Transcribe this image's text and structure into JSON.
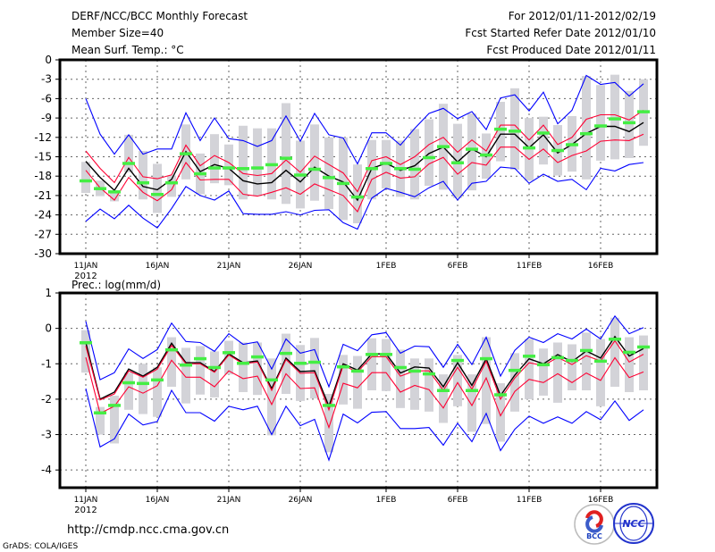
{
  "header": {
    "title": "DERF/NCC/BCC Monthly Forecast",
    "member_size": "Member Size=40",
    "variable": "Mean Surf. Temp.: °C",
    "period": "For 2012/01/11-2012/02/19",
    "started": "Fcst Started Refer Date 2012/01/10",
    "produced": "Fcst Produced Date 2012/01/11"
  },
  "footer": {
    "url": "http://cmdp.ncc.cma.gov.cn",
    "credit": "GrADS: COLA/IGES",
    "logo_bcc": "BCC",
    "logo_ncc": "NCC"
  },
  "colors": {
    "mean": "#000000",
    "spread": "#ff0033",
    "envelope": "#0000ff",
    "observed": "#44ee44",
    "range": "#d3d3d8"
  },
  "chart_data": [
    {
      "type": "line",
      "title": "Mean Surf. Temp.: °C",
      "ylabel": "°C",
      "ylim": [
        -30,
        0
      ],
      "yticks": [
        0,
        -3,
        -6,
        -9,
        -12,
        -15,
        -18,
        -21,
        -24,
        -27,
        -30
      ],
      "xtick_labels": [
        "11JAN",
        "16JAN",
        "21JAN",
        "26JAN",
        "1FEB",
        "6FEB",
        "11FEB",
        "16FEB"
      ],
      "xtick_days": [
        0,
        5,
        10,
        15,
        21,
        26,
        31,
        36
      ],
      "year_label": "2012",
      "grid": true,
      "days": 40,
      "series": [
        {
          "name": "ensemble-mean",
          "color": "mean",
          "values": [
            -15.7,
            -18.2,
            -20.2,
            -16.8,
            -19.6,
            -20.1,
            -18.5,
            -14.2,
            -17.3,
            -16.2,
            -16.8,
            -18.7,
            -19.2,
            -19.0,
            -17.1,
            -18.9,
            -16.6,
            -18.0,
            -18.9,
            -21.7,
            -16.8,
            -16.0,
            -17.1,
            -16.4,
            -14.5,
            -13.5,
            -15.8,
            -13.8,
            -15.0,
            -11.5,
            -11.5,
            -13.6,
            -11.6,
            -14.4,
            -13.1,
            -11.4,
            -10.3,
            -10.3,
            -11.1,
            -9.7
          ]
        },
        {
          "name": "spread-upper",
          "color": "spread",
          "values": [
            -14.1,
            -16.8,
            -19.0,
            -15.1,
            -18.1,
            -18.4,
            -17.8,
            -13.2,
            -16.4,
            -14.8,
            -15.9,
            -17.6,
            -17.9,
            -17.6,
            -15.5,
            -17.4,
            -14.9,
            -16.2,
            -17.5,
            -20.4,
            -15.6,
            -15.0,
            -16.2,
            -15.0,
            -13.1,
            -12.0,
            -14.3,
            -12.4,
            -14.1,
            -10.1,
            -10.1,
            -12.4,
            -10.1,
            -13.1,
            -12.0,
            -9.2,
            -8.5,
            -8.5,
            -9.3,
            -7.8
          ]
        },
        {
          "name": "spread-lower",
          "color": "spread",
          "values": [
            -17.1,
            -19.8,
            -21.7,
            -18.2,
            -20.5,
            -21.8,
            -20.1,
            -15.9,
            -18.6,
            -18.5,
            -18.5,
            -20.8,
            -21.1,
            -20.5,
            -19.8,
            -20.8,
            -19.2,
            -20.1,
            -21.0,
            -23.5,
            -18.5,
            -17.4,
            -18.3,
            -18.1,
            -16.1,
            -15.1,
            -17.7,
            -15.9,
            -16.3,
            -13.5,
            -13.5,
            -15.4,
            -13.8,
            -15.9,
            -14.8,
            -14.1,
            -12.6,
            -12.4,
            -12.5,
            -11.5
          ]
        },
        {
          "name": "member-max",
          "color": "envelope",
          "values": [
            -6.0,
            -11.5,
            -14.6,
            -11.6,
            -14.6,
            -13.8,
            -13.8,
            -8.2,
            -12.5,
            -9.0,
            -12.2,
            -12.5,
            -13.4,
            -12.5,
            -8.7,
            -12.6,
            -8.3,
            -11.6,
            -12.1,
            -16.1,
            -11.3,
            -11.3,
            -13.2,
            -10.6,
            -8.3,
            -7.5,
            -9.1,
            -8.0,
            -10.8,
            -5.9,
            -5.4,
            -7.9,
            -5.0,
            -9.9,
            -7.8,
            -2.4,
            -3.8,
            -3.5,
            -5.6,
            -3.7
          ]
        },
        {
          "name": "member-min",
          "color": "envelope",
          "values": [
            -25.0,
            -23.1,
            -24.6,
            -22.5,
            -24.5,
            -26.0,
            -23.0,
            -19.6,
            -21.0,
            -21.7,
            -20.3,
            -23.8,
            -23.9,
            -23.9,
            -23.5,
            -24.0,
            -23.3,
            -23.2,
            -25.2,
            -26.2,
            -21.4,
            -19.9,
            -20.5,
            -21.2,
            -19.8,
            -18.8,
            -21.7,
            -19.1,
            -18.8,
            -16.6,
            -16.8,
            -19.1,
            -17.7,
            -18.8,
            -18.5,
            -20.1,
            -16.8,
            -17.2,
            -16.2,
            -15.9
          ]
        }
      ],
      "observed": [
        -18.7,
        -19.9,
        -20.4,
        -16.0,
        -19.0,
        -20.8,
        -19.0,
        -14.5,
        -17.6,
        -16.7,
        -16.7,
        -16.8,
        -16.7,
        -16.2,
        -15.2,
        -17.8,
        -16.9,
        -18.2,
        -19.1,
        -21.2,
        -16.8,
        -16.0,
        -16.8,
        -16.9,
        -15.1,
        -13.4,
        -15.9,
        -13.8,
        -14.7,
        -10.7,
        -11.0,
        -13.6,
        -11.3,
        -14.0,
        -13.1,
        -11.4,
        -10.2,
        -9.1,
        -9.7,
        -8.0
      ],
      "range": [
        [
          -15.8,
          -20.6
        ],
        [
          -18.7,
          -21.1
        ],
        [
          -20.2,
          -21.9
        ],
        [
          -11.6,
          -17.4
        ],
        [
          -14.1,
          -21.6
        ],
        [
          -16.1,
          -23.7
        ],
        [
          -17.9,
          -21.2
        ],
        [
          -10.0,
          -18.5
        ],
        [
          -14.5,
          -20.8
        ],
        [
          -11.5,
          -19.1
        ],
        [
          -13.1,
          -19.4
        ],
        [
          -10.2,
          -21.6
        ],
        [
          -10.6,
          -21.1
        ],
        [
          -10.6,
          -21.6
        ],
        [
          -6.7,
          -22.3
        ],
        [
          -12.5,
          -23.0
        ],
        [
          -10.0,
          -21.8
        ],
        [
          -12.0,
          -23.1
        ],
        [
          -12.0,
          -24.8
        ],
        [
          -16.2,
          -25.3
        ],
        [
          -12.4,
          -21.6
        ],
        [
          -12.4,
          -19.9
        ],
        [
          -12.5,
          -21.2
        ],
        [
          -10.7,
          -21.6
        ],
        [
          -9.2,
          -19.5
        ],
        [
          -6.8,
          -20.1
        ],
        [
          -9.9,
          -21.4
        ],
        [
          -8.3,
          -20.2
        ],
        [
          -11.4,
          -18.4
        ],
        [
          -6.5,
          -15.7
        ],
        [
          -4.4,
          -17.0
        ],
        [
          -9.0,
          -18.7
        ],
        [
          -8.8,
          -16.2
        ],
        [
          -10.1,
          -17.9
        ],
        [
          -8.7,
          -17.3
        ],
        [
          -2.5,
          -18.5
        ],
        [
          -3.9,
          -15.6
        ],
        [
          -2.3,
          -15.4
        ],
        [
          -4.8,
          -15.2
        ],
        [
          -3.0,
          -13.3
        ]
      ]
    },
    {
      "type": "line",
      "title": "Prec.: log(mm/d)",
      "ylabel": "log(mm/d)",
      "ylim": [
        -4.5,
        1
      ],
      "yticks": [
        1,
        0,
        -1,
        -2,
        -3,
        -4
      ],
      "xtick_labels": [
        "11JAN",
        "16JAN",
        "21JAN",
        "26JAN",
        "1FEB",
        "6FEB",
        "11FEB",
        "16FEB"
      ],
      "xtick_days": [
        0,
        5,
        10,
        15,
        21,
        26,
        31,
        36
      ],
      "year_label": "2012",
      "grid": true,
      "days": 40,
      "series": [
        {
          "name": "ensemble-mean",
          "color": "mean",
          "values": [
            -0.4,
            -2.0,
            -1.8,
            -1.15,
            -1.35,
            -1.1,
            -0.42,
            -0.97,
            -0.97,
            -1.22,
            -0.72,
            -0.97,
            -0.92,
            -1.7,
            -0.84,
            -1.22,
            -1.2,
            -2.2,
            -1.0,
            -1.18,
            -0.72,
            -0.72,
            -1.26,
            -1.09,
            -1.12,
            -1.65,
            -0.97,
            -1.61,
            -0.86,
            -1.9,
            -1.32,
            -0.86,
            -1.0,
            -0.74,
            -0.94,
            -0.64,
            -0.84,
            -0.23,
            -0.78,
            -0.57
          ]
        },
        {
          "name": "spread-upper",
          "color": "spread",
          "values": [
            -0.5,
            -2.02,
            -1.85,
            -1.2,
            -1.38,
            -1.15,
            -0.48,
            -1.0,
            -1.0,
            -1.24,
            -0.75,
            -1.0,
            -0.95,
            -1.75,
            -0.88,
            -1.27,
            -1.25,
            -2.3,
            -1.05,
            -1.23,
            -0.8,
            -0.8,
            -1.35,
            -1.2,
            -1.2,
            -1.75,
            -1.1,
            -1.72,
            -0.93,
            -2.0,
            -1.4,
            -0.97,
            -1.05,
            -0.82,
            -1.02,
            -0.77,
            -0.92,
            -0.35,
            -0.95,
            -0.73
          ]
        },
        {
          "name": "spread-lower",
          "color": "spread",
          "values": [
            -0.82,
            -2.4,
            -2.2,
            -1.65,
            -1.83,
            -1.62,
            -0.9,
            -1.38,
            -1.38,
            -1.65,
            -1.2,
            -1.42,
            -1.35,
            -2.15,
            -1.28,
            -1.7,
            -1.68,
            -2.8,
            -1.55,
            -1.68,
            -1.25,
            -1.25,
            -1.8,
            -1.61,
            -1.73,
            -2.25,
            -1.53,
            -2.18,
            -1.4,
            -2.47,
            -1.78,
            -1.44,
            -1.53,
            -1.28,
            -1.53,
            -1.26,
            -1.47,
            -0.83,
            -1.39,
            -1.23
          ]
        },
        {
          "name": "member-max",
          "color": "envelope",
          "values": [
            0.2,
            -1.45,
            -1.25,
            -0.58,
            -0.85,
            -0.6,
            0.15,
            -0.37,
            -0.4,
            -0.65,
            -0.15,
            -0.45,
            -0.38,
            -1.15,
            -0.3,
            -0.7,
            -0.6,
            -1.65,
            -0.45,
            -0.63,
            -0.18,
            -0.12,
            -0.7,
            -0.5,
            -0.52,
            -1.1,
            -0.45,
            -1.02,
            -0.25,
            -1.35,
            -0.62,
            -0.25,
            -0.4,
            -0.15,
            -0.3,
            -0.02,
            -0.3,
            0.35,
            -0.15,
            0.02
          ]
        },
        {
          "name": "member-min",
          "color": "envelope",
          "values": [
            -1.7,
            -3.35,
            -3.12,
            -2.42,
            -2.73,
            -2.63,
            -1.75,
            -2.38,
            -2.38,
            -2.62,
            -2.2,
            -2.3,
            -2.2,
            -3.0,
            -2.2,
            -2.75,
            -2.57,
            -3.72,
            -2.42,
            -2.67,
            -2.37,
            -2.35,
            -2.83,
            -2.83,
            -2.8,
            -3.3,
            -2.68,
            -3.2,
            -2.4,
            -3.45,
            -2.85,
            -2.48,
            -2.68,
            -2.5,
            -2.68,
            -2.35,
            -2.58,
            -2.05,
            -2.6,
            -2.3
          ]
        }
      ],
      "observed": [
        -0.4,
        -2.38,
        -2.17,
        -1.53,
        -1.55,
        -1.45,
        -0.6,
        -1.03,
        -0.85,
        -1.1,
        -0.68,
        -0.98,
        -0.8,
        -1.45,
        -0.7,
        -0.98,
        -0.95,
        -2.17,
        -1.08,
        -1.2,
        -0.73,
        -0.73,
        -1.1,
        -1.2,
        -1.28,
        -1.75,
        -0.9,
        -1.75,
        -0.85,
        -1.87,
        -1.18,
        -0.78,
        -1.02,
        -0.82,
        -0.9,
        -0.62,
        -0.92,
        -0.3,
        -0.67,
        -0.52
      ],
      "range": [
        [
          -0.05,
          -1.25
        ],
        [
          -2.22,
          -3.0
        ],
        [
          -1.9,
          -3.25
        ],
        [
          -1.25,
          -2.3
        ],
        [
          -1.0,
          -2.42
        ],
        [
          -1.1,
          -2.5
        ],
        [
          -0.25,
          -1.65
        ],
        [
          -0.55,
          -2.12
        ],
        [
          -0.5,
          -1.87
        ],
        [
          -0.65,
          -1.95
        ],
        [
          -0.35,
          -1.3
        ],
        [
          -0.4,
          -1.8
        ],
        [
          -0.4,
          -1.88
        ],
        [
          -0.85,
          -3.02
        ],
        [
          -0.15,
          -1.85
        ],
        [
          -0.47,
          -2.05
        ],
        [
          -0.27,
          -1.98
        ],
        [
          -1.85,
          -3.5
        ],
        [
          -0.75,
          -2.15
        ],
        [
          -0.78,
          -2.27
        ],
        [
          -0.28,
          -1.75
        ],
        [
          -0.3,
          -1.77
        ],
        [
          -0.6,
          -2.25
        ],
        [
          -0.85,
          -2.3
        ],
        [
          -0.85,
          -2.35
        ],
        [
          -1.3,
          -2.67
        ],
        [
          -0.75,
          -2.2
        ],
        [
          -1.3,
          -2.92
        ],
        [
          -0.25,
          -2.7
        ],
        [
          -1.55,
          -3.2
        ],
        [
          -0.7,
          -2.35
        ],
        [
          -0.3,
          -2.0
        ],
        [
          -0.57,
          -1.9
        ],
        [
          -0.4,
          -2.1
        ],
        [
          -0.45,
          -1.75
        ],
        [
          -0.12,
          -1.75
        ],
        [
          -0.3,
          -2.2
        ],
        [
          0.3,
          -1.65
        ],
        [
          -0.25,
          -1.8
        ],
        [
          -0.2,
          -1.75
        ]
      ]
    }
  ]
}
